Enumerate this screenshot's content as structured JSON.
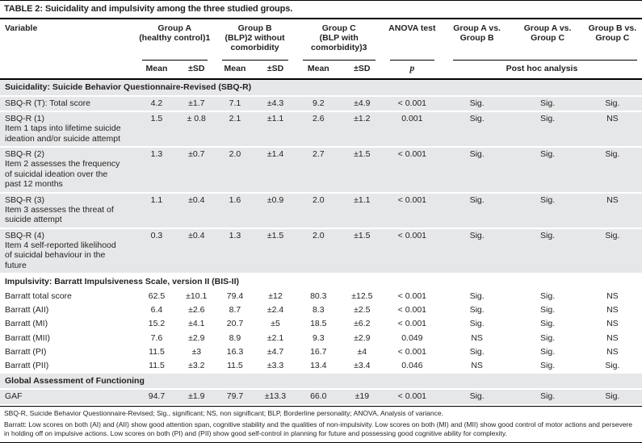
{
  "title": "TABLE 2: Suicidality and impulsivity among the three studied groups.",
  "header": {
    "variable": "Variable",
    "group_a_line1": "Group A",
    "group_a_line2": "(healthy control)1",
    "group_b_line1": "Group B",
    "group_b_line2": "(BLP)2 without",
    "group_b_line3": "comorbidity",
    "group_c_line1": "Group C",
    "group_c_line2": "(BLP with comorbidity)3",
    "anova": "ANOVA test",
    "a_vs_b_line1": "Group A vs.",
    "a_vs_b_line2": "Group B",
    "a_vs_c_line1": "Group A vs.",
    "a_vs_c_line2": "Group C",
    "b_vs_c_line1": "Group B vs.",
    "b_vs_c_line2": "Group C",
    "mean": "Mean",
    "sd": "±SD",
    "p": "p",
    "post_hoc": "Post hoc analysis"
  },
  "sections": [
    {
      "heading": "Suicidality: Suicide Behavior Questionnaire-Revised (SBQ-R)",
      "rows": [
        {
          "label": "SBQ-R (T): Total score",
          "desc": "",
          "a_mean": "4.2",
          "a_sd": "±1.7",
          "b_mean": "7.1",
          "b_sd": "±4.3",
          "c_mean": "9.2",
          "c_sd": "±4.9",
          "p": "< 0.001",
          "a_vs_b": "Sig.",
          "a_vs_c": "Sig.",
          "b_vs_c": "Sig."
        },
        {
          "label": "SBQ-R (1)",
          "desc": "Item 1 taps into lifetime suicide ideation and/or suicide attempt",
          "a_mean": "1.5",
          "a_sd": "± 0.8",
          "b_mean": "2.1",
          "b_sd": "±1.1",
          "c_mean": "2.6",
          "c_sd": "±1.2",
          "p": "0.001",
          "a_vs_b": "Sig.",
          "a_vs_c": "Sig.",
          "b_vs_c": "NS"
        },
        {
          "label": "SBQ-R (2)",
          "desc": "Item 2 assesses the frequency of suicidal ideation over the past 12 months",
          "a_mean": "1.3",
          "a_sd": "±0.7",
          "b_mean": "2.0",
          "b_sd": "±1.4",
          "c_mean": "2.7",
          "c_sd": "±1.5",
          "p": "< 0.001",
          "a_vs_b": "Sig.",
          "a_vs_c": "Sig.",
          "b_vs_c": "Sig."
        },
        {
          "label": "SBQ-R (3)",
          "desc": "Item 3 assesses the threat of suicide attempt",
          "a_mean": "1.1",
          "a_sd": "±0.4",
          "b_mean": "1.6",
          "b_sd": "±0.9",
          "c_mean": "2.0",
          "c_sd": "±1.1",
          "p": "< 0.001",
          "a_vs_b": "Sig.",
          "a_vs_c": "Sig.",
          "b_vs_c": "NS"
        },
        {
          "label": "SBQ-R (4)",
          "desc": "Item 4 self-reported likelihood of suicidal behaviour in the future",
          "a_mean": "0.3",
          "a_sd": "±0.4",
          "b_mean": "1.3",
          "b_sd": "±1.5",
          "c_mean": "2.0",
          "c_sd": "±1.5",
          "p": "< 0.001",
          "a_vs_b": "Sig.",
          "a_vs_c": "Sig.",
          "b_vs_c": "Sig."
        }
      ]
    },
    {
      "heading": "Impulsivity: Barratt Impulsiveness Scale, version II (BIS-II)",
      "rows": [
        {
          "label": "Barratt total score",
          "desc": "",
          "a_mean": "62.5",
          "a_sd": "±10.1",
          "b_mean": "79.4",
          "b_sd": "±12",
          "c_mean": "80.3",
          "c_sd": "±12.5",
          "p": "< 0.001",
          "a_vs_b": "Sig.",
          "a_vs_c": "Sig.",
          "b_vs_c": "NS"
        },
        {
          "label": "Barratt (AII)",
          "desc": "",
          "a_mean": "6.4",
          "a_sd": "±2.6",
          "b_mean": "8.7",
          "b_sd": "±2.4",
          "c_mean": "8.3",
          "c_sd": "±2.5",
          "p": "< 0.001",
          "a_vs_b": "Sig.",
          "a_vs_c": "Sig.",
          "b_vs_c": "NS"
        },
        {
          "label": "Barratt (MI)",
          "desc": "",
          "a_mean": "15.2",
          "a_sd": "±4.1",
          "b_mean": "20.7",
          "b_sd": "±5",
          "c_mean": "18.5",
          "c_sd": "±6.2",
          "p": "< 0.001",
          "a_vs_b": "Sig.",
          "a_vs_c": "Sig.",
          "b_vs_c": "NS"
        },
        {
          "label": "Barratt (MII)",
          "desc": "",
          "a_mean": "7.6",
          "a_sd": "±2.9",
          "b_mean": "8.9",
          "b_sd": "±2.1",
          "c_mean": "9.3",
          "c_sd": "±2.9",
          "p": "0.049",
          "a_vs_b": "NS",
          "a_vs_c": "Sig.",
          "b_vs_c": "NS"
        },
        {
          "label": "Barratt (PI)",
          "desc": "",
          "a_mean": "11.5",
          "a_sd": "±3",
          "b_mean": "16.3",
          "b_sd": "±4.7",
          "c_mean": "16.7",
          "c_sd": "±4",
          "p": "< 0.001",
          "a_vs_b": "Sig.",
          "a_vs_c": "Sig.",
          "b_vs_c": "NS"
        },
        {
          "label": "Barratt (PII)",
          "desc": "",
          "a_mean": "11.5",
          "a_sd": "±3.2",
          "b_mean": "11.5",
          "b_sd": "±3.3",
          "c_mean": "13.4",
          "c_sd": "±3.4",
          "p": "0.046",
          "a_vs_b": "NS",
          "a_vs_c": "Sig.",
          "b_vs_c": "Sig."
        }
      ]
    },
    {
      "heading": "Global Assessment of Functioning",
      "rows": [
        {
          "label": "GAF",
          "desc": "",
          "a_mean": "94.7",
          "a_sd": "±1.9",
          "b_mean": "79.7",
          "b_sd": "±13.3",
          "c_mean": "66.0",
          "c_sd": "±19",
          "p": "< 0.001",
          "a_vs_b": "Sig.",
          "a_vs_c": "Sig.",
          "b_vs_c": "Sig."
        }
      ]
    }
  ],
  "footnotes": [
    "SBQ-R, Suicide Behavior Questionnaire-Revised; Sig., significant; NS, non significant; BLP, Borderline personality; ANOVA, Analysis of variance.",
    "Barratt: Low scores on both (AI) and (AII) show good attention span, cognitive stability and the qualities of non-impulsivity. Low scores on both (MI) and (MII) show good control of motor actions and persevere in holding off on impulsive actions. Low scores on both (PI) and (PII) show good self-control in planning for future and possessing good cognitive ability for complexity."
  ],
  "colors": {
    "section_shade": "#e6e7e8",
    "text": "#231f20",
    "rule": "#000000"
  }
}
